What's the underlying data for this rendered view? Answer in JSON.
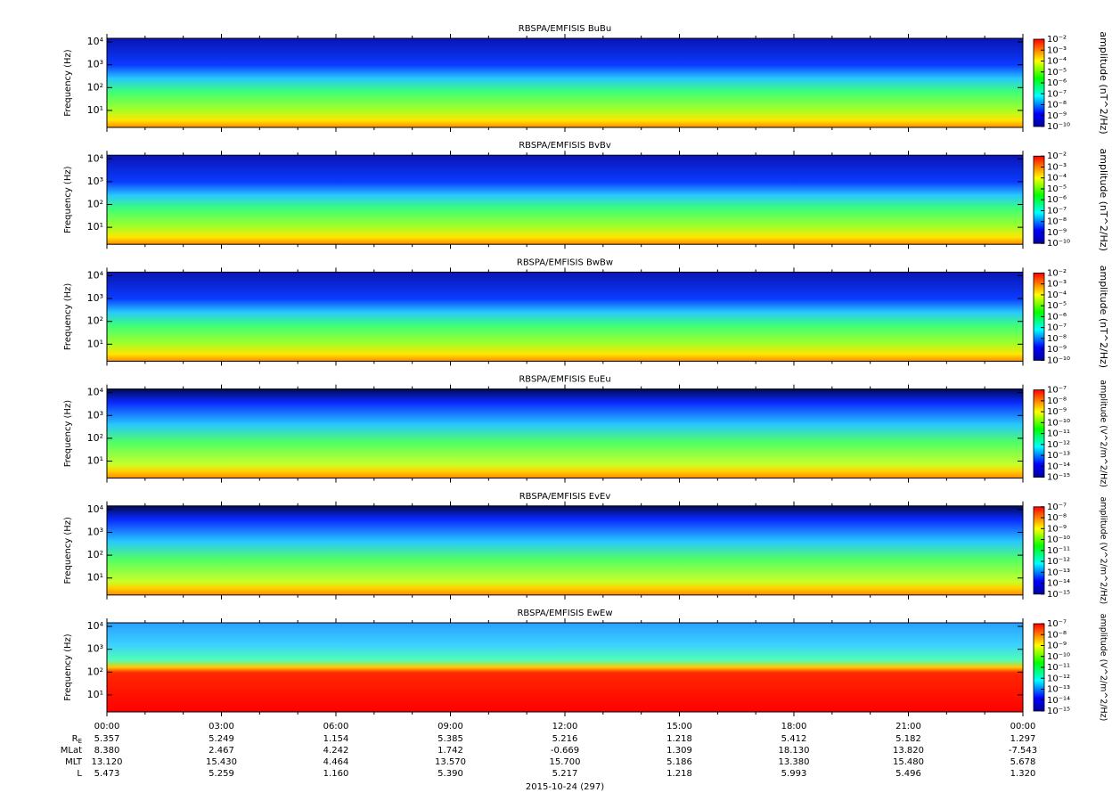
{
  "chart_data": [
    {
      "type": "spectrogram",
      "title": "RBSPA/EMFISIS  BuBu",
      "y_label": "Frequency (Hz)",
      "ylog": true,
      "ylim": [
        1.8,
        14400
      ],
      "yticks": [
        {
          "value": 10,
          "label": "10¹"
        },
        {
          "value": 100,
          "label": "10²"
        },
        {
          "value": 1000,
          "label": "10³"
        },
        {
          "value": 10000,
          "label": "10⁴"
        }
      ],
      "xlim": [
        0,
        24
      ],
      "colorbar": {
        "label": "amplitude (nT^2/Hz)",
        "lim": [
          1e-10,
          0.01
        ],
        "ticks": [
          {
            "value": 0.01,
            "label": "10⁻²"
          },
          {
            "value": 0.001,
            "label": "10⁻³"
          },
          {
            "value": 0.0001,
            "label": "10⁻⁴"
          },
          {
            "value": 1e-05,
            "label": "10⁻⁵"
          },
          {
            "value": 1e-06,
            "label": "10⁻⁶"
          },
          {
            "value": 1e-07,
            "label": "10⁻⁷"
          },
          {
            "value": 1e-08,
            "label": "10⁻⁸"
          },
          {
            "value": 1e-09,
            "label": "10⁻⁹"
          },
          {
            "value": 1e-10,
            "label": "10⁻¹⁰"
          }
        ]
      }
    },
    {
      "type": "spectrogram",
      "title": "RBSPA/EMFISIS  BvBv",
      "y_label": "Frequency (Hz)",
      "ylog": true,
      "ylim": [
        1.8,
        14400
      ],
      "yticks": [
        {
          "value": 10,
          "label": "10¹"
        },
        {
          "value": 100,
          "label": "10²"
        },
        {
          "value": 1000,
          "label": "10³"
        },
        {
          "value": 10000,
          "label": "10⁴"
        }
      ],
      "xlim": [
        0,
        24
      ],
      "colorbar": {
        "label": "amplitude (nT^2/Hz)",
        "lim": [
          1e-10,
          0.01
        ],
        "ticks": [
          {
            "value": 0.01,
            "label": "10⁻²"
          },
          {
            "value": 0.001,
            "label": "10⁻³"
          },
          {
            "value": 0.0001,
            "label": "10⁻⁴"
          },
          {
            "value": 1e-05,
            "label": "10⁻⁵"
          },
          {
            "value": 1e-06,
            "label": "10⁻⁶"
          },
          {
            "value": 1e-07,
            "label": "10⁻⁷"
          },
          {
            "value": 1e-08,
            "label": "10⁻⁸"
          },
          {
            "value": 1e-09,
            "label": "10⁻⁹"
          },
          {
            "value": 1e-10,
            "label": "10⁻¹⁰"
          }
        ]
      }
    },
    {
      "type": "spectrogram",
      "title": "RBSPA/EMFISIS  BwBw",
      "y_label": "Frequency (Hz)",
      "ylog": true,
      "ylim": [
        1.8,
        14400
      ],
      "yticks": [
        {
          "value": 10,
          "label": "10¹"
        },
        {
          "value": 100,
          "label": "10²"
        },
        {
          "value": 1000,
          "label": "10³"
        },
        {
          "value": 10000,
          "label": "10⁴"
        }
      ],
      "xlim": [
        0,
        24
      ],
      "colorbar": {
        "label": "amplitude (nT^2/Hz)",
        "lim": [
          1e-10,
          0.01
        ],
        "ticks": [
          {
            "value": 0.01,
            "label": "10⁻²"
          },
          {
            "value": 0.001,
            "label": "10⁻³"
          },
          {
            "value": 0.0001,
            "label": "10⁻⁴"
          },
          {
            "value": 1e-05,
            "label": "10⁻⁵"
          },
          {
            "value": 1e-06,
            "label": "10⁻⁶"
          },
          {
            "value": 1e-07,
            "label": "10⁻⁷"
          },
          {
            "value": 1e-08,
            "label": "10⁻⁸"
          },
          {
            "value": 1e-09,
            "label": "10⁻⁹"
          },
          {
            "value": 1e-10,
            "label": "10⁻¹⁰"
          }
        ]
      }
    },
    {
      "type": "spectrogram",
      "title": "RBSPA/EMFISIS  EuEu",
      "y_label": "Frequency (Hz)",
      "ylog": true,
      "ylim": [
        1.8,
        14400
      ],
      "yticks": [
        {
          "value": 10,
          "label": "10¹"
        },
        {
          "value": 100,
          "label": "10²"
        },
        {
          "value": 1000,
          "label": "10³"
        },
        {
          "value": 10000,
          "label": "10⁴"
        }
      ],
      "xlim": [
        0,
        24
      ],
      "colorbar": {
        "label": "amplitude (V^2/m^2/Hz)",
        "lim": [
          1e-15,
          1e-07
        ],
        "ticks": [
          {
            "value": 1e-07,
            "label": "10⁻⁷"
          },
          {
            "value": 1e-08,
            "label": "10⁻⁸"
          },
          {
            "value": 1e-09,
            "label": "10⁻⁹"
          },
          {
            "value": 1e-10,
            "label": "10⁻¹⁰"
          },
          {
            "value": 1e-11,
            "label": "10⁻¹¹"
          },
          {
            "value": 1e-12,
            "label": "10⁻¹²"
          },
          {
            "value": 1e-13,
            "label": "10⁻¹³"
          },
          {
            "value": 1e-14,
            "label": "10⁻¹⁴"
          },
          {
            "value": 1e-15,
            "label": "10⁻¹⁵"
          }
        ]
      }
    },
    {
      "type": "spectrogram",
      "title": "RBSPA/EMFISIS  EvEv",
      "y_label": "Frequency (Hz)",
      "ylog": true,
      "ylim": [
        1.8,
        14400
      ],
      "yticks": [
        {
          "value": 10,
          "label": "10¹"
        },
        {
          "value": 100,
          "label": "10²"
        },
        {
          "value": 1000,
          "label": "10³"
        },
        {
          "value": 10000,
          "label": "10⁴"
        }
      ],
      "xlim": [
        0,
        24
      ],
      "colorbar": {
        "label": "amplitude (V^2/m^2/Hz)",
        "lim": [
          1e-15,
          1e-07
        ],
        "ticks": [
          {
            "value": 1e-07,
            "label": "10⁻⁷"
          },
          {
            "value": 1e-08,
            "label": "10⁻⁸"
          },
          {
            "value": 1e-09,
            "label": "10⁻⁹"
          },
          {
            "value": 1e-10,
            "label": "10⁻¹⁰"
          },
          {
            "value": 1e-11,
            "label": "10⁻¹¹"
          },
          {
            "value": 1e-12,
            "label": "10⁻¹²"
          },
          {
            "value": 1e-13,
            "label": "10⁻¹³"
          },
          {
            "value": 1e-14,
            "label": "10⁻¹⁴"
          },
          {
            "value": 1e-15,
            "label": "10⁻¹⁵"
          }
        ]
      }
    },
    {
      "type": "spectrogram",
      "title": "RBSPA/EMFISIS  EwEw",
      "y_label": "Frequency (Hz)",
      "ylog": true,
      "ylim": [
        1.8,
        14400
      ],
      "yticks": [
        {
          "value": 10,
          "label": "10¹"
        },
        {
          "value": 100,
          "label": "10²"
        },
        {
          "value": 1000,
          "label": "10³"
        },
        {
          "value": 10000,
          "label": "10⁴"
        }
      ],
      "xlim": [
        0,
        24
      ],
      "xticks": [
        {
          "value": 0,
          "label": "00:00"
        },
        {
          "value": 3,
          "label": "03:00"
        },
        {
          "value": 6,
          "label": "06:00"
        },
        {
          "value": 9,
          "label": "09:00"
        },
        {
          "value": 12,
          "label": "12:00"
        },
        {
          "value": 15,
          "label": "15:00"
        },
        {
          "value": 18,
          "label": "18:00"
        },
        {
          "value": 21,
          "label": "21:00"
        },
        {
          "value": 24,
          "label": "00:00"
        }
      ],
      "xminorticks": [
        1,
        2,
        4,
        5,
        7,
        8,
        10,
        11,
        13,
        14,
        16,
        17,
        19,
        20,
        22,
        23
      ],
      "colorbar": {
        "label": "amplitude (V^2/m^2/Hz)",
        "lim": [
          1e-15,
          1e-07
        ],
        "ticks": [
          {
            "value": 1e-07,
            "label": "10⁻⁷"
          },
          {
            "value": 1e-08,
            "label": "10⁻⁸"
          },
          {
            "value": 1e-09,
            "label": "10⁻⁹"
          },
          {
            "value": 1e-10,
            "label": "10⁻¹⁰"
          },
          {
            "value": 1e-11,
            "label": "10⁻¹¹"
          },
          {
            "value": 1e-12,
            "label": "10⁻¹²"
          },
          {
            "value": 1e-13,
            "label": "10⁻¹³"
          },
          {
            "value": 1e-14,
            "label": "10⁻¹⁴"
          },
          {
            "value": 1e-15,
            "label": "10⁻¹⁵"
          }
        ]
      },
      "ephemeris": {
        "rows": [
          {
            "label": "R",
            "sub": "E",
            "values": [
              "5.357",
              "5.249",
              "1.154",
              "5.385",
              "5.216",
              "1.218",
              "5.412",
              "5.182",
              "1.297"
            ]
          },
          {
            "label": "MLat",
            "values": [
              "8.380",
              "2.467",
              "4.242",
              "1.742",
              "-0.669",
              "1.309",
              "18.130",
              "13.820",
              "-7.543"
            ]
          },
          {
            "label": "MLT",
            "values": [
              "13.120",
              "15.430",
              "4.464",
              "13.570",
              "15.700",
              "5.186",
              "13.380",
              "15.480",
              "5.678"
            ]
          },
          {
            "label": "L",
            "values": [
              "5.473",
              "5.259",
              "1.160",
              "5.390",
              "5.217",
              "1.218",
              "5.993",
              "5.496",
              "1.320"
            ]
          }
        ],
        "date": "2015-10-24 (297)"
      }
    }
  ]
}
